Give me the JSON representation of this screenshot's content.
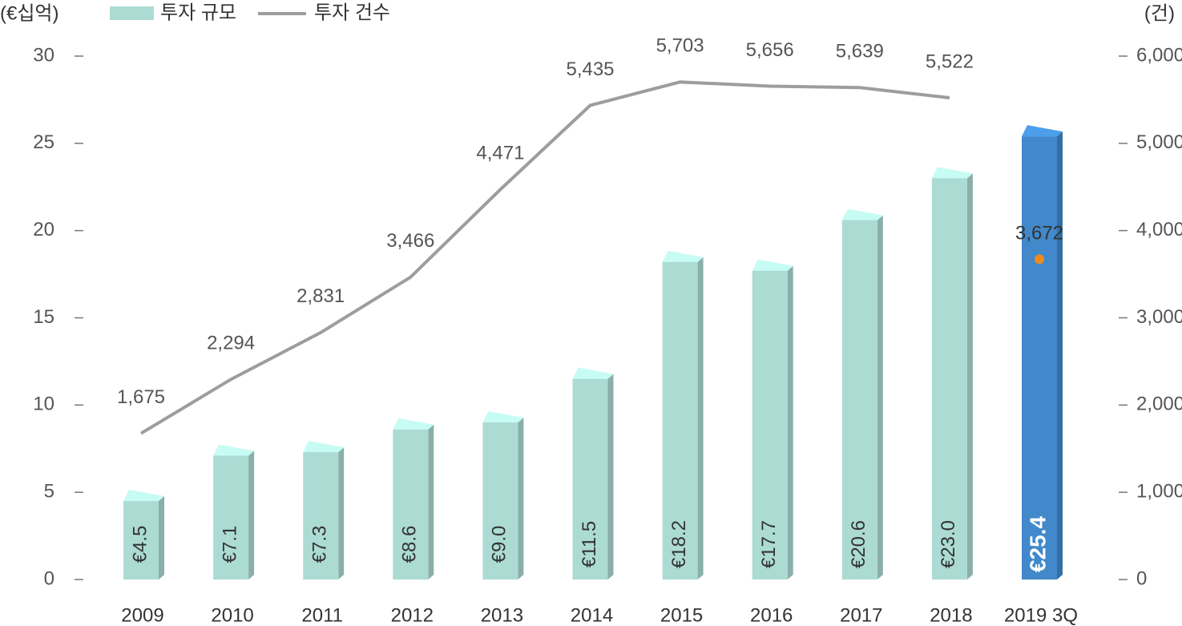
{
  "chart_data": {
    "type": "bar_line",
    "y_label": "(€십억)",
    "y2_label": "(건)",
    "categories": [
      "2009",
      "2010",
      "2011",
      "2012",
      "2013",
      "2014",
      "2015",
      "2016",
      "2017",
      "2018",
      "2019 3Q"
    ],
    "series": [
      {
        "name": "투자 규모",
        "type": "bar",
        "color": "#acdbd4",
        "colors": [
          "#acdbd4",
          "#acdbd4",
          "#acdbd4",
          "#acdbd4",
          "#acdbd4",
          "#acdbd4",
          "#acdbd4",
          "#acdbd4",
          "#acdbd4",
          "#acdbd4",
          "#4189cb"
        ],
        "values": [
          4.5,
          7.1,
          7.3,
          8.6,
          9.0,
          11.5,
          18.2,
          17.7,
          20.6,
          23.0,
          25.4
        ],
        "value_labels": [
          "€4.5",
          "€7.1",
          "€7.3",
          "€8.6",
          "€9.0",
          "€11.5",
          "€18.2",
          "€17.7",
          "€20.6",
          "€23.0",
          "€25.4"
        ]
      },
      {
        "name": "투자 건수",
        "type": "line",
        "axis": "y2",
        "color": "#9d9d9d",
        "values": [
          1675,
          2294,
          2831,
          3466,
          4471,
          5435,
          5703,
          5656,
          5639,
          5522,
          null
        ],
        "value_labels": [
          "1,675",
          "2,294",
          "2,831",
          "3,466",
          "4,471",
          "5,435",
          "5,703",
          "5,656",
          "5,639",
          "5,522",
          null
        ]
      }
    ],
    "annotations": [
      {
        "category": 10,
        "value": 3672,
        "label": "3,672",
        "color": "#ef8a1e"
      }
    ],
    "ylim": [
      0,
      30
    ],
    "yticks": [
      0,
      5,
      10,
      15,
      20,
      25,
      30
    ],
    "y2lim": [
      0,
      6000
    ],
    "y2ticks": [
      0,
      {
        "value": 1000,
        "label": "1,000"
      },
      {
        "value": 2000,
        "label": "2,000"
      },
      {
        "value": 3000,
        "label": "3,000"
      },
      {
        "value": 4000,
        "label": "4,000"
      },
      {
        "value": 5000,
        "label": "5,000"
      },
      {
        "value": 6000,
        "label": "6,000"
      }
    ]
  }
}
